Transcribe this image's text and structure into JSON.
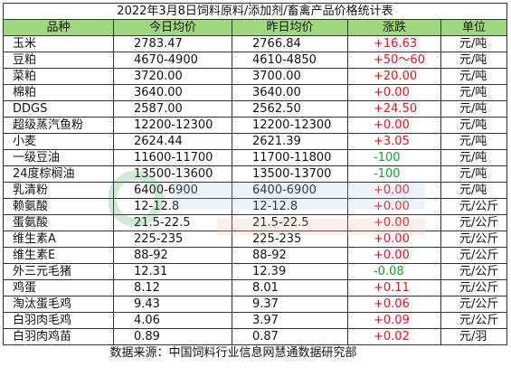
{
  "title": "2022年3月8日饲料原料/添加剂/畜禽产品价格统计表",
  "headers": {
    "name": "品种",
    "today": "今日均价",
    "yesterday": "昨日均价",
    "change": "涨跌",
    "unit": "单位"
  },
  "rows": [
    {
      "name": "玉米",
      "today": "2783.47",
      "yesterday": "2766.84",
      "change": "+16.63",
      "dir": "up",
      "unit": "元/吨"
    },
    {
      "name": "豆粕",
      "today": "4670-4900",
      "yesterday": "4610-4850",
      "change": "+50～60",
      "dir": "up",
      "unit": "元/吨"
    },
    {
      "name": "菜粕",
      "today": "3720.00",
      "yesterday": "3700.00",
      "change": "+20.00",
      "dir": "up",
      "unit": "元/吨"
    },
    {
      "name": "棉粕",
      "today": "3640.00",
      "yesterday": "3640.00",
      "change": "+0.00",
      "dir": "up",
      "unit": "元/吨"
    },
    {
      "name": "DDGS",
      "today": "2587.00",
      "yesterday": "2562.50",
      "change": "+24.50",
      "dir": "up",
      "unit": "元/吨"
    },
    {
      "name": "超级蒸汽鱼粉",
      "today": "12200-12300",
      "yesterday": "12200-12300",
      "change": "+0.00",
      "dir": "up",
      "unit": "元/吨"
    },
    {
      "name": "小麦",
      "today": "2624.44",
      "yesterday": "2621.39",
      "change": "+3.05",
      "dir": "up",
      "unit": "元/吨"
    },
    {
      "name": "一级豆油",
      "today": "11600-11700",
      "yesterday": "11700-11800",
      "change": "-100",
      "dir": "down",
      "unit": "元/吨"
    },
    {
      "name": "24度棕榈油",
      "today": "13500-13600",
      "yesterday": "13500-13700",
      "change": "-100",
      "dir": "down",
      "unit": "元/吨"
    },
    {
      "name": "乳清粉",
      "today": "6400-6900",
      "yesterday": "6400-6900",
      "change": "+0.00",
      "dir": "up",
      "unit": "元/吨"
    },
    {
      "name": "赖氨酸",
      "today": "12-12.8",
      "yesterday": "12-12.8",
      "change": "+0.00",
      "dir": "up",
      "unit": "元/公斤"
    },
    {
      "name": "蛋氨酸",
      "today": "21.5-22.5",
      "yesterday": "21.5-22.5",
      "change": "+0.00",
      "dir": "up",
      "unit": "元/公斤"
    },
    {
      "name": "维生素A",
      "today": "225-235",
      "yesterday": "225-235",
      "change": "+0.00",
      "dir": "up",
      "unit": "元/公斤"
    },
    {
      "name": "维生素E",
      "today": "88-92",
      "yesterday": "88-92",
      "change": "+0.00",
      "dir": "up",
      "unit": "元/公斤"
    },
    {
      "name": "外三元毛猪",
      "today": "12.31",
      "yesterday": "12.39",
      "change": "-0.08",
      "dir": "down",
      "unit": "元/公斤"
    },
    {
      "name": "鸡蛋",
      "today": "8.12",
      "yesterday": "8.01",
      "change": "+0.11",
      "dir": "up",
      "unit": "元/公斤"
    },
    {
      "name": "淘汰蛋毛鸡",
      "today": "9.43",
      "yesterday": "9.37",
      "change": "+0.06",
      "dir": "up",
      "unit": "元/公斤"
    },
    {
      "name": "白羽肉毛鸡",
      "today": "4.06",
      "yesterday": "3.97",
      "change": "+0.09",
      "dir": "up",
      "unit": "元/公斤"
    },
    {
      "name": "白羽肉鸡苗",
      "today": "0.89",
      "yesterday": "0.87",
      "change": "+0.02",
      "dir": "up",
      "unit": "元/羽"
    }
  ],
  "footer": "数据来源：中国饲料行业信息网慧通数据研究部",
  "colors": {
    "header_bg": "#9fd97d",
    "up": "#e8141b",
    "down": "#1b9c2d"
  }
}
